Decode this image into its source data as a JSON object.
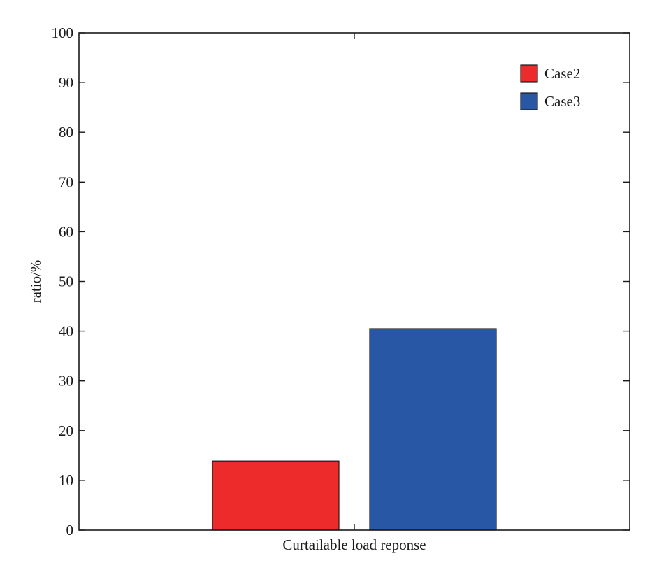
{
  "chart_data": {
    "type": "bar",
    "title": "",
    "xlabel": "",
    "ylabel": "ratio/%",
    "ylim": [
      0,
      100
    ],
    "yticks": [
      0,
      10,
      20,
      30,
      40,
      50,
      60,
      70,
      80,
      90,
      100
    ],
    "categories": [
      "Curtailable load reponse"
    ],
    "series": [
      {
        "name": "Case2",
        "values": [
          13.9
        ],
        "color": "#ee2b2b"
      },
      {
        "name": "Case3",
        "values": [
          40.5
        ],
        "color": "#2757a5"
      }
    ],
    "grid": false,
    "legend_position": "top-right"
  }
}
